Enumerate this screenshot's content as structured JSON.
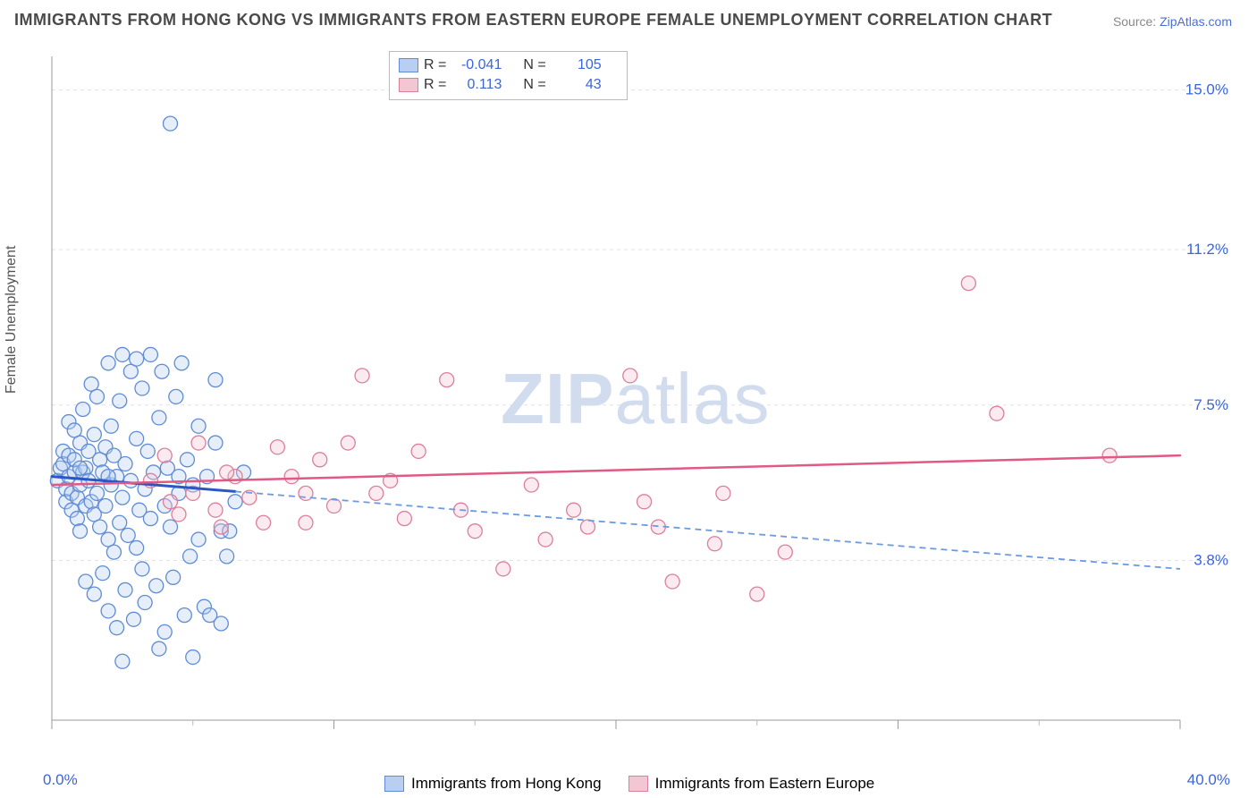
{
  "title": "IMMIGRANTS FROM HONG KONG VS IMMIGRANTS FROM EASTERN EUROPE FEMALE UNEMPLOYMENT CORRELATION CHART",
  "source_label": "Source:",
  "source_name": "ZipAtlas.com",
  "y_axis_label": "Female Unemployment",
  "watermark": {
    "bold": "ZIP",
    "thin": "atlas"
  },
  "chart": {
    "type": "scatter",
    "xlim": [
      0,
      40
    ],
    "ylim": [
      0,
      15.8
    ],
    "background_color": "#ffffff",
    "grid_color": "#e2e2e2",
    "grid_dash": "4,4",
    "x_ticks_major": [
      0,
      10,
      20,
      30,
      40
    ],
    "x_ticks_minor": [
      5,
      15,
      25,
      35
    ],
    "x_tick_labels": {
      "0": "0.0%",
      "40": "40.0%"
    },
    "y_grid_lines": [
      3.8,
      7.5,
      11.2,
      15.0
    ],
    "y_tick_labels": [
      "3.8%",
      "7.5%",
      "11.2%",
      "15.0%"
    ],
    "marker_radius": 8,
    "marker_stroke_width": 1.3,
    "marker_fill_opacity": 0.35,
    "series": [
      {
        "name": "Immigrants from Hong Kong",
        "color": "#6d9ae0",
        "fill": "#b8cff1",
        "stroke": "#5f8cd4",
        "R": "-0.041",
        "N": "105",
        "trend": {
          "x1": 0,
          "y1": 5.8,
          "x2": 40,
          "y2": 3.6,
          "solid_until_x": 6.5,
          "color_solid": "#2a56c6",
          "color_dash": "#6d9ae0",
          "width_solid": 3,
          "width_dash": 1.8,
          "dash": "7,5"
        },
        "points": [
          [
            0.2,
            5.7
          ],
          [
            0.3,
            6.0
          ],
          [
            0.4,
            6.4
          ],
          [
            0.4,
            6.1
          ],
          [
            0.5,
            5.5
          ],
          [
            0.5,
            5.2
          ],
          [
            0.6,
            6.3
          ],
          [
            0.6,
            5.8
          ],
          [
            0.6,
            7.1
          ],
          [
            0.7,
            5.0
          ],
          [
            0.7,
            5.4
          ],
          [
            0.8,
            6.9
          ],
          [
            0.8,
            5.9
          ],
          [
            0.8,
            6.2
          ],
          [
            0.9,
            4.8
          ],
          [
            0.9,
            5.3
          ],
          [
            1.0,
            6.6
          ],
          [
            1.0,
            5.6
          ],
          [
            1.0,
            4.5
          ],
          [
            1.1,
            7.4
          ],
          [
            1.1,
            5.9
          ],
          [
            1.2,
            6.0
          ],
          [
            1.2,
            5.1
          ],
          [
            1.2,
            3.3
          ],
          [
            1.3,
            6.4
          ],
          [
            1.3,
            5.7
          ],
          [
            1.4,
            8.0
          ],
          [
            1.4,
            5.2
          ],
          [
            1.5,
            6.8
          ],
          [
            1.5,
            4.9
          ],
          [
            1.5,
            3.0
          ],
          [
            1.6,
            7.7
          ],
          [
            1.6,
            5.4
          ],
          [
            1.7,
            6.2
          ],
          [
            1.7,
            4.6
          ],
          [
            1.8,
            5.9
          ],
          [
            1.8,
            3.5
          ],
          [
            1.9,
            6.5
          ],
          [
            1.9,
            5.1
          ],
          [
            2.0,
            8.5
          ],
          [
            2.0,
            4.3
          ],
          [
            2.0,
            2.6
          ],
          [
            2.1,
            7.0
          ],
          [
            2.1,
            5.6
          ],
          [
            2.2,
            6.3
          ],
          [
            2.2,
            4.0
          ],
          [
            2.3,
            2.2
          ],
          [
            2.3,
            5.8
          ],
          [
            2.4,
            7.6
          ],
          [
            2.4,
            4.7
          ],
          [
            2.5,
            8.7
          ],
          [
            2.5,
            5.3
          ],
          [
            2.6,
            3.1
          ],
          [
            2.6,
            6.1
          ],
          [
            2.7,
            4.4
          ],
          [
            2.8,
            8.3
          ],
          [
            2.8,
            5.7
          ],
          [
            2.9,
            2.4
          ],
          [
            3.0,
            6.7
          ],
          [
            3.0,
            4.1
          ],
          [
            3.0,
            8.6
          ],
          [
            3.1,
            5.0
          ],
          [
            3.2,
            3.6
          ],
          [
            3.2,
            7.9
          ],
          [
            3.3,
            5.5
          ],
          [
            3.3,
            2.8
          ],
          [
            3.4,
            6.4
          ],
          [
            3.5,
            4.8
          ],
          [
            3.5,
            8.7
          ],
          [
            3.6,
            5.9
          ],
          [
            3.7,
            3.2
          ],
          [
            3.8,
            7.2
          ],
          [
            3.9,
            8.3
          ],
          [
            4.0,
            5.1
          ],
          [
            4.0,
            2.1
          ],
          [
            4.1,
            6.0
          ],
          [
            4.2,
            4.6
          ],
          [
            4.3,
            3.4
          ],
          [
            4.4,
            7.7
          ],
          [
            4.5,
            5.4
          ],
          [
            4.6,
            8.5
          ],
          [
            4.7,
            2.5
          ],
          [
            4.8,
            6.2
          ],
          [
            4.9,
            3.9
          ],
          [
            5.0,
            5.6
          ],
          [
            5.0,
            1.5
          ],
          [
            5.2,
            7.0
          ],
          [
            5.2,
            4.3
          ],
          [
            5.4,
            2.7
          ],
          [
            5.5,
            5.8
          ],
          [
            5.6,
            2.5
          ],
          [
            5.8,
            6.6
          ],
          [
            5.8,
            8.1
          ],
          [
            6.0,
            4.5
          ],
          [
            6.0,
            2.3
          ],
          [
            6.2,
            3.9
          ],
          [
            6.3,
            4.5
          ],
          [
            6.5,
            5.2
          ],
          [
            6.8,
            5.9
          ],
          [
            4.2,
            14.2
          ],
          [
            2.5,
            1.4
          ],
          [
            3.8,
            1.7
          ],
          [
            4.5,
            5.8
          ],
          [
            1.0,
            6.0
          ],
          [
            2.0,
            5.8
          ]
        ]
      },
      {
        "name": "Immigrants from Eastern Europe",
        "color": "#e594ab",
        "fill": "#f3c6d3",
        "stroke": "#db7f9a",
        "R": "0.113",
        "N": "43",
        "trend": {
          "x1": 0,
          "y1": 5.6,
          "x2": 40,
          "y2": 6.3,
          "solid_until_x": 40,
          "color_solid": "#e05a84",
          "width_solid": 2.5
        },
        "points": [
          [
            3.5,
            5.7
          ],
          [
            4.0,
            6.3
          ],
          [
            4.2,
            5.2
          ],
          [
            4.5,
            4.9
          ],
          [
            5.0,
            5.4
          ],
          [
            5.2,
            6.6
          ],
          [
            5.8,
            5.0
          ],
          [
            6.0,
            4.6
          ],
          [
            6.5,
            5.8
          ],
          [
            7.0,
            5.3
          ],
          [
            7.5,
            4.7
          ],
          [
            8.0,
            6.5
          ],
          [
            9.0,
            5.4
          ],
          [
            9.0,
            4.7
          ],
          [
            9.5,
            6.2
          ],
          [
            10.0,
            5.1
          ],
          [
            10.5,
            6.6
          ],
          [
            11.0,
            8.2
          ],
          [
            12.0,
            5.7
          ],
          [
            12.5,
            4.8
          ],
          [
            13.0,
            6.4
          ],
          [
            14.0,
            8.1
          ],
          [
            14.5,
            5.0
          ],
          [
            15.0,
            4.5
          ],
          [
            16.0,
            3.6
          ],
          [
            17.0,
            5.6
          ],
          [
            17.5,
            4.3
          ],
          [
            18.5,
            5.0
          ],
          [
            19.0,
            4.6
          ],
          [
            20.5,
            8.2
          ],
          [
            21.0,
            5.2
          ],
          [
            21.5,
            4.6
          ],
          [
            22.0,
            3.3
          ],
          [
            23.5,
            4.2
          ],
          [
            23.8,
            5.4
          ],
          [
            25.0,
            3.0
          ],
          [
            26.0,
            4.0
          ],
          [
            32.5,
            10.4
          ],
          [
            33.5,
            7.3
          ],
          [
            37.5,
            6.3
          ],
          [
            6.2,
            5.9
          ],
          [
            8.5,
            5.8
          ],
          [
            11.5,
            5.4
          ]
        ]
      }
    ]
  },
  "legend_bottom": [
    {
      "label": "Immigrants from Hong Kong",
      "fill": "#b8cff1",
      "stroke": "#5f8cd4"
    },
    {
      "label": "Immigrants from Eastern Europe",
      "fill": "#f3c6d3",
      "stroke": "#db7f9a"
    }
  ]
}
